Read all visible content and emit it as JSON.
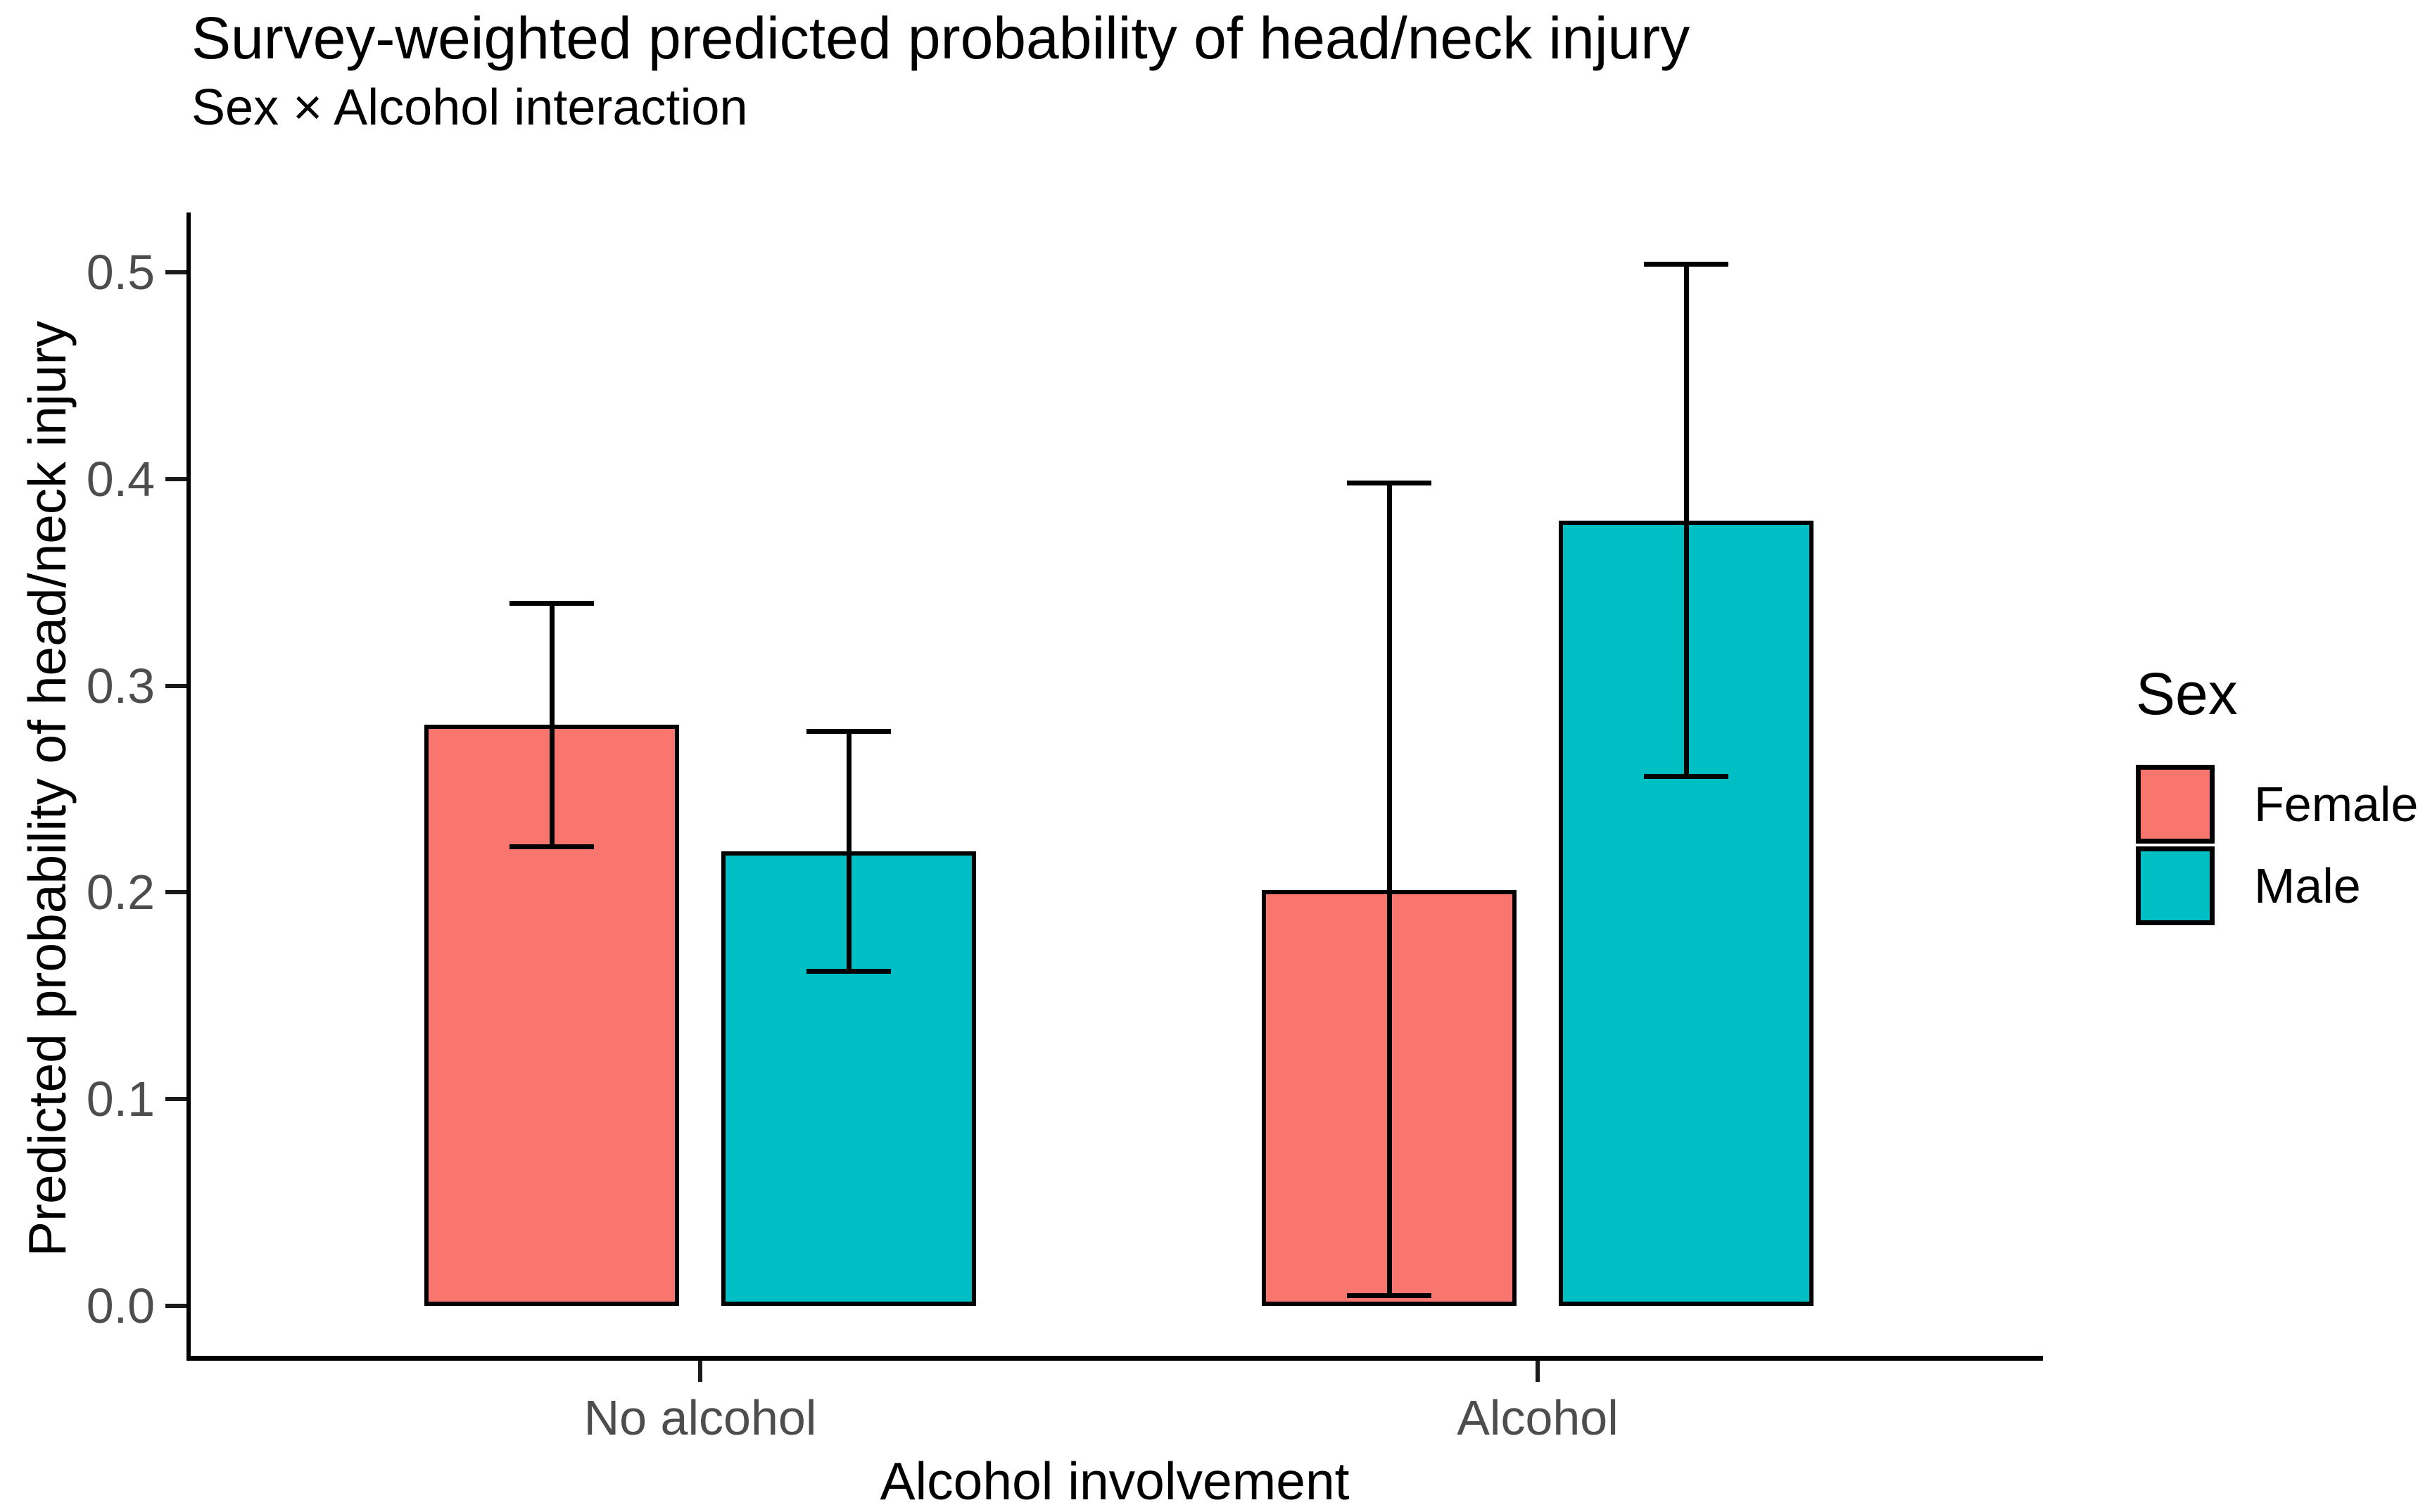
{
  "chart_data": {
    "type": "bar",
    "title": "Survey-weighted predicted probability of head/neck injury",
    "subtitle": "Sex × Alcohol interaction",
    "xlabel": "Alcohol involvement",
    "ylabel": "Predicted probability of head/neck injury",
    "categories": [
      "No alcohol",
      "Alcohol"
    ],
    "series": [
      {
        "name": "Female",
        "color": "#F8766D",
        "values": [
          0.281,
          0.201
        ],
        "ci_low": [
          0.222,
          0.005
        ],
        "ci_high": [
          0.34,
          0.398
        ]
      },
      {
        "name": "Male",
        "color": "#00BFC4",
        "values": [
          0.22,
          0.38
        ],
        "ci_low": [
          0.162,
          0.256
        ],
        "ci_high": [
          0.278,
          0.504
        ]
      }
    ],
    "y_ticks": [
      0.0,
      0.1,
      0.2,
      0.3,
      0.4,
      0.5
    ],
    "ylim": [
      0,
      0.5
    ],
    "grid": false,
    "legend_title": "Sex",
    "legend_position": "right",
    "bar_outline_color": "#000000",
    "errorbar_color": "#000000",
    "axis_line_color": "#000000",
    "tick_label_color": "#4d4d4d",
    "background_color": "#ffffff"
  }
}
